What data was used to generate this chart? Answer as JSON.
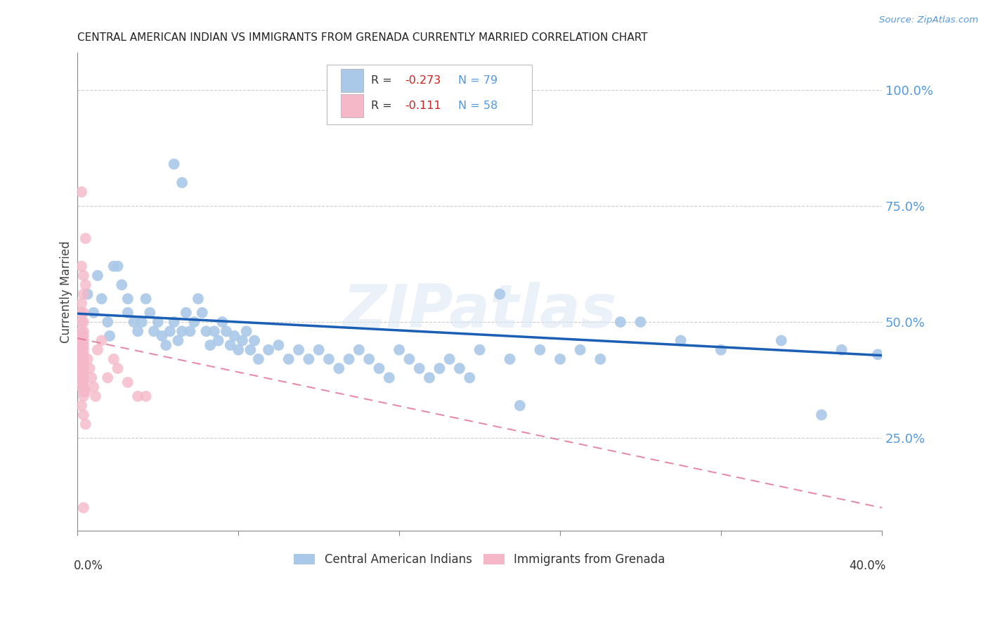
{
  "title": "CENTRAL AMERICAN INDIAN VS IMMIGRANTS FROM GRENADA CURRENTLY MARRIED CORRELATION CHART",
  "source": "Source: ZipAtlas.com",
  "ylabel": "Currently Married",
  "ytick_labels": [
    "100.0%",
    "75.0%",
    "50.0%",
    "25.0%"
  ],
  "ytick_values": [
    1.0,
    0.75,
    0.5,
    0.25
  ],
  "xlim": [
    0.0,
    0.4
  ],
  "ylim": [
    0.05,
    1.08
  ],
  "blue_color": "#aac8e8",
  "blue_line_color": "#1a5fb4",
  "pink_color": "#f4b8c8",
  "pink_line_color": "#e07090",
  "watermark": "ZIPatlas",
  "blue_scatter": [
    [
      0.005,
      0.56
    ],
    [
      0.008,
      0.52
    ],
    [
      0.01,
      0.6
    ],
    [
      0.012,
      0.55
    ],
    [
      0.015,
      0.5
    ],
    [
      0.016,
      0.47
    ],
    [
      0.018,
      0.62
    ],
    [
      0.02,
      0.62
    ],
    [
      0.022,
      0.58
    ],
    [
      0.025,
      0.55
    ],
    [
      0.025,
      0.52
    ],
    [
      0.028,
      0.5
    ],
    [
      0.03,
      0.48
    ],
    [
      0.032,
      0.5
    ],
    [
      0.034,
      0.55
    ],
    [
      0.036,
      0.52
    ],
    [
      0.038,
      0.48
    ],
    [
      0.04,
      0.5
    ],
    [
      0.042,
      0.47
    ],
    [
      0.044,
      0.45
    ],
    [
      0.046,
      0.48
    ],
    [
      0.048,
      0.5
    ],
    [
      0.05,
      0.46
    ],
    [
      0.052,
      0.48
    ],
    [
      0.054,
      0.52
    ],
    [
      0.056,
      0.48
    ],
    [
      0.058,
      0.5
    ],
    [
      0.06,
      0.55
    ],
    [
      0.062,
      0.52
    ],
    [
      0.064,
      0.48
    ],
    [
      0.066,
      0.45
    ],
    [
      0.068,
      0.48
    ],
    [
      0.07,
      0.46
    ],
    [
      0.072,
      0.5
    ],
    [
      0.074,
      0.48
    ],
    [
      0.076,
      0.45
    ],
    [
      0.078,
      0.47
    ],
    [
      0.08,
      0.44
    ],
    [
      0.082,
      0.46
    ],
    [
      0.084,
      0.48
    ],
    [
      0.086,
      0.44
    ],
    [
      0.088,
      0.46
    ],
    [
      0.09,
      0.42
    ],
    [
      0.095,
      0.44
    ],
    [
      0.1,
      0.45
    ],
    [
      0.105,
      0.42
    ],
    [
      0.11,
      0.44
    ],
    [
      0.115,
      0.42
    ],
    [
      0.12,
      0.44
    ],
    [
      0.125,
      0.42
    ],
    [
      0.13,
      0.4
    ],
    [
      0.135,
      0.42
    ],
    [
      0.14,
      0.44
    ],
    [
      0.145,
      0.42
    ],
    [
      0.15,
      0.4
    ],
    [
      0.155,
      0.38
    ],
    [
      0.16,
      0.44
    ],
    [
      0.165,
      0.42
    ],
    [
      0.17,
      0.4
    ],
    [
      0.175,
      0.38
    ],
    [
      0.18,
      0.4
    ],
    [
      0.185,
      0.42
    ],
    [
      0.19,
      0.4
    ],
    [
      0.195,
      0.38
    ],
    [
      0.2,
      0.44
    ],
    [
      0.21,
      0.56
    ],
    [
      0.215,
      0.42
    ],
    [
      0.22,
      0.32
    ],
    [
      0.23,
      0.44
    ],
    [
      0.24,
      0.42
    ],
    [
      0.25,
      0.44
    ],
    [
      0.26,
      0.42
    ],
    [
      0.27,
      0.5
    ],
    [
      0.28,
      0.5
    ],
    [
      0.3,
      0.46
    ],
    [
      0.32,
      0.44
    ],
    [
      0.35,
      0.46
    ],
    [
      0.37,
      0.3
    ],
    [
      0.048,
      0.84
    ],
    [
      0.052,
      0.8
    ],
    [
      0.38,
      0.44
    ],
    [
      0.398,
      0.43
    ]
  ],
  "pink_scatter": [
    [
      0.002,
      0.78
    ],
    [
      0.004,
      0.68
    ],
    [
      0.002,
      0.62
    ],
    [
      0.003,
      0.6
    ],
    [
      0.004,
      0.58
    ],
    [
      0.003,
      0.56
    ],
    [
      0.002,
      0.54
    ],
    [
      0.003,
      0.52
    ],
    [
      0.002,
      0.52
    ],
    [
      0.003,
      0.5
    ],
    [
      0.002,
      0.5
    ],
    [
      0.003,
      0.48
    ],
    [
      0.002,
      0.48
    ],
    [
      0.003,
      0.47
    ],
    [
      0.002,
      0.47
    ],
    [
      0.003,
      0.46
    ],
    [
      0.002,
      0.46
    ],
    [
      0.003,
      0.45
    ],
    [
      0.002,
      0.45
    ],
    [
      0.003,
      0.44
    ],
    [
      0.002,
      0.44
    ],
    [
      0.003,
      0.43
    ],
    [
      0.002,
      0.43
    ],
    [
      0.003,
      0.42
    ],
    [
      0.002,
      0.42
    ],
    [
      0.003,
      0.41
    ],
    [
      0.002,
      0.41
    ],
    [
      0.003,
      0.4
    ],
    [
      0.002,
      0.4
    ],
    [
      0.003,
      0.39
    ],
    [
      0.002,
      0.39
    ],
    [
      0.003,
      0.38
    ],
    [
      0.002,
      0.38
    ],
    [
      0.003,
      0.37
    ],
    [
      0.002,
      0.37
    ],
    [
      0.003,
      0.36
    ],
    [
      0.002,
      0.36
    ],
    [
      0.003,
      0.35
    ],
    [
      0.004,
      0.35
    ],
    [
      0.003,
      0.34
    ],
    [
      0.002,
      0.32
    ],
    [
      0.003,
      0.3
    ],
    [
      0.004,
      0.28
    ],
    [
      0.003,
      0.1
    ],
    [
      0.01,
      0.44
    ],
    [
      0.015,
      0.38
    ],
    [
      0.02,
      0.4
    ],
    [
      0.025,
      0.37
    ],
    [
      0.03,
      0.34
    ],
    [
      0.034,
      0.34
    ],
    [
      0.012,
      0.46
    ],
    [
      0.018,
      0.42
    ],
    [
      0.005,
      0.42
    ],
    [
      0.006,
      0.4
    ],
    [
      0.007,
      0.38
    ],
    [
      0.008,
      0.36
    ],
    [
      0.009,
      0.34
    ]
  ],
  "blue_line_x": [
    0.0,
    0.4
  ],
  "blue_line_y": [
    0.518,
    0.428
  ],
  "pink_line_x": [
    0.0,
    0.4
  ],
  "pink_line_y": [
    0.465,
    0.1
  ]
}
